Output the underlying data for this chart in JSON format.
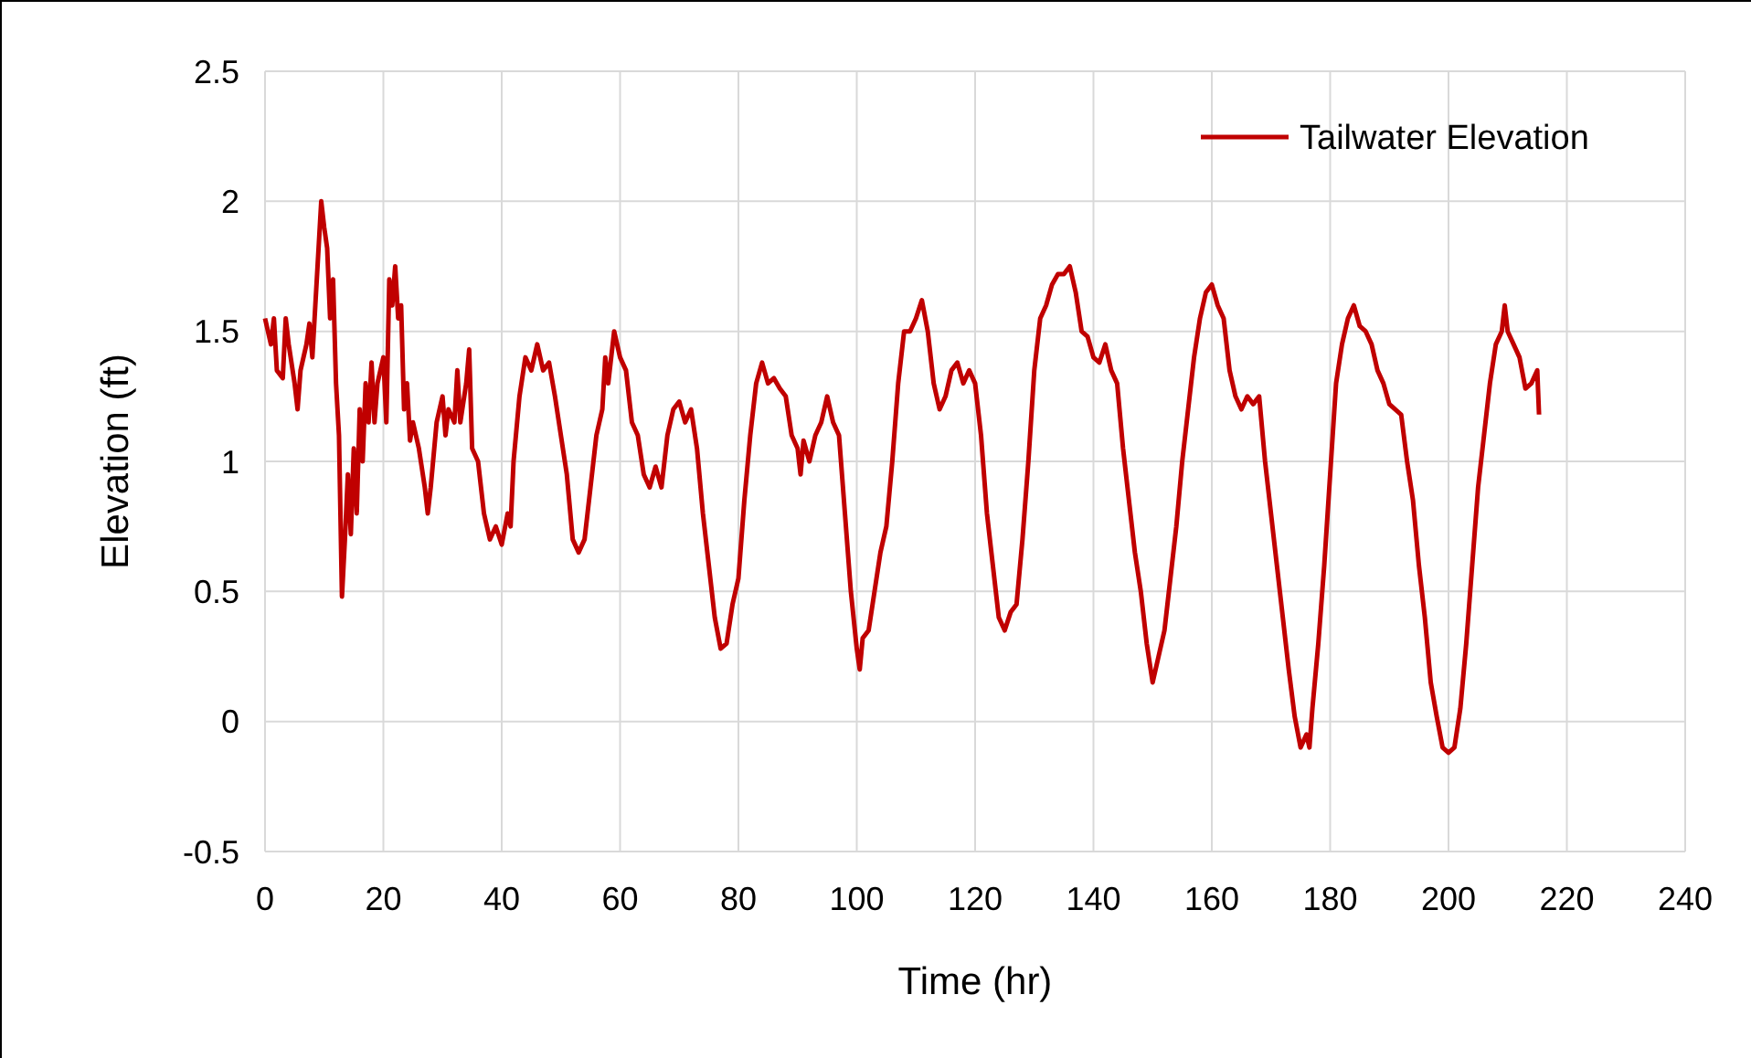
{
  "chart_data": {
    "type": "line",
    "xlabel": "Time (hr)",
    "ylabel": "Elevation (ft)",
    "xlim": [
      0,
      240
    ],
    "xticks": [
      0,
      20,
      40,
      60,
      80,
      100,
      120,
      140,
      160,
      180,
      200,
      220,
      240
    ],
    "ylim": [
      -0.5,
      2.5
    ],
    "yticks": [
      -0.5,
      0,
      0.5,
      1,
      1.5,
      2,
      2.5
    ],
    "grid": true,
    "legend": "top right",
    "marker": "none",
    "line_style": "solid",
    "series": [
      {
        "name": "Tailwater Elevation",
        "color": "#c00000",
        "x": [
          0,
          0.5,
          1,
          1.5,
          2,
          3,
          3.5,
          4,
          5,
          5.5,
          6,
          7,
          7.5,
          8,
          8.5,
          9.5,
          10,
          10.5,
          11,
          11.5,
          12,
          12.5,
          13,
          13.5,
          14,
          14.5,
          15,
          15.5,
          16,
          16.5,
          17,
          17.5,
          18,
          18.5,
          19,
          20,
          20.5,
          21,
          21.5,
          22,
          22.5,
          23,
          23.5,
          24,
          24.5,
          25,
          26,
          27,
          27.5,
          28,
          29,
          30,
          30.5,
          31,
          32,
          32.5,
          33,
          34,
          34.5,
          35,
          36,
          37,
          38,
          39,
          40,
          41,
          41.5,
          42,
          43,
          44,
          45,
          46,
          47,
          48,
          49,
          50,
          51,
          52,
          53,
          54,
          55,
          56,
          57,
          57.5,
          58,
          59,
          60,
          61,
          62,
          63,
          64,
          65,
          66,
          67,
          68,
          69,
          70,
          71,
          72,
          73,
          74,
          75,
          76,
          77,
          78,
          79,
          80,
          81,
          82,
          83,
          84,
          85,
          86,
          87,
          88,
          89,
          90,
          90.5,
          91,
          92,
          93,
          94,
          95,
          96,
          97,
          98,
          99,
          100,
          100.5,
          101,
          102,
          103,
          104,
          105,
          106,
          107,
          108,
          109,
          110,
          111,
          112,
          113,
          114,
          115,
          116,
          117,
          118,
          119,
          120,
          121,
          122,
          123,
          124,
          125,
          126,
          127,
          128,
          129,
          130,
          131,
          132,
          133,
          134,
          135,
          136,
          137,
          138,
          139,
          140,
          141,
          142,
          143,
          144,
          145,
          146,
          147,
          148,
          149,
          150,
          151,
          152,
          153,
          154,
          155,
          156,
          157,
          158,
          159,
          160,
          161,
          162,
          163,
          164,
          165,
          166,
          167,
          168,
          169,
          170,
          171,
          172,
          173,
          174,
          175,
          176,
          176.5,
          177,
          178,
          179,
          180,
          181,
          182,
          183,
          184,
          185,
          186,
          187,
          188,
          189,
          190,
          191,
          192,
          193,
          194,
          195,
          196,
          197,
          198,
          199,
          200,
          201,
          202,
          203,
          204,
          205,
          206,
          207,
          208,
          209,
          209.5,
          210,
          211,
          212,
          213,
          214,
          215,
          215.3
        ],
        "values": [
          1.55,
          1.5,
          1.45,
          1.55,
          1.35,
          1.32,
          1.55,
          1.45,
          1.3,
          1.2,
          1.35,
          1.45,
          1.53,
          1.4,
          1.6,
          2.0,
          1.9,
          1.82,
          1.55,
          1.7,
          1.3,
          1.1,
          0.48,
          0.7,
          0.95,
          0.72,
          1.05,
          0.8,
          1.2,
          1.0,
          1.3,
          1.15,
          1.38,
          1.15,
          1.3,
          1.4,
          1.15,
          1.7,
          1.6,
          1.75,
          1.55,
          1.6,
          1.2,
          1.3,
          1.08,
          1.15,
          1.05,
          0.9,
          0.8,
          0.9,
          1.15,
          1.25,
          1.1,
          1.2,
          1.15,
          1.35,
          1.15,
          1.3,
          1.43,
          1.05,
          1.0,
          0.8,
          0.7,
          0.75,
          0.68,
          0.8,
          0.75,
          1.0,
          1.25,
          1.4,
          1.35,
          1.45,
          1.35,
          1.38,
          1.25,
          1.1,
          0.95,
          0.7,
          0.65,
          0.7,
          0.9,
          1.1,
          1.2,
          1.4,
          1.3,
          1.5,
          1.4,
          1.35,
          1.15,
          1.1,
          0.95,
          0.9,
          0.98,
          0.9,
          1.1,
          1.2,
          1.23,
          1.15,
          1.2,
          1.05,
          0.8,
          0.6,
          0.4,
          0.28,
          0.3,
          0.45,
          0.55,
          0.85,
          1.1,
          1.3,
          1.38,
          1.3,
          1.32,
          1.28,
          1.25,
          1.1,
          1.05,
          0.95,
          1.08,
          1.0,
          1.1,
          1.15,
          1.25,
          1.15,
          1.1,
          0.8,
          0.5,
          0.28,
          0.2,
          0.32,
          0.35,
          0.5,
          0.65,
          0.75,
          1.0,
          1.3,
          1.5,
          1.5,
          1.55,
          1.62,
          1.5,
          1.3,
          1.2,
          1.25,
          1.35,
          1.38,
          1.3,
          1.35,
          1.3,
          1.1,
          0.8,
          0.6,
          0.4,
          0.35,
          0.42,
          0.45,
          0.7,
          1.0,
          1.35,
          1.55,
          1.6,
          1.68,
          1.72,
          1.72,
          1.75,
          1.65,
          1.5,
          1.48,
          1.4,
          1.38,
          1.45,
          1.35,
          1.3,
          1.05,
          0.85,
          0.65,
          0.5,
          0.3,
          0.15,
          0.25,
          0.35,
          0.55,
          0.75,
          1.0,
          1.2,
          1.4,
          1.55,
          1.65,
          1.68,
          1.6,
          1.55,
          1.35,
          1.25,
          1.2,
          1.25,
          1.22,
          1.25,
          1.0,
          0.8,
          0.6,
          0.4,
          0.2,
          0.02,
          -0.1,
          -0.05,
          -0.1,
          0.05,
          0.3,
          0.6,
          0.95,
          1.3,
          1.45,
          1.55,
          1.6,
          1.52,
          1.5,
          1.45,
          1.35,
          1.3,
          1.22,
          1.2,
          1.18,
          1.0,
          0.85,
          0.6,
          0.4,
          0.15,
          0.02,
          -0.1,
          -0.12,
          -0.1,
          0.05,
          0.3,
          0.6,
          0.9,
          1.1,
          1.3,
          1.45,
          1.5,
          1.6,
          1.5,
          1.45,
          1.4,
          1.28,
          1.3,
          1.35,
          1.18
        ]
      }
    ]
  }
}
